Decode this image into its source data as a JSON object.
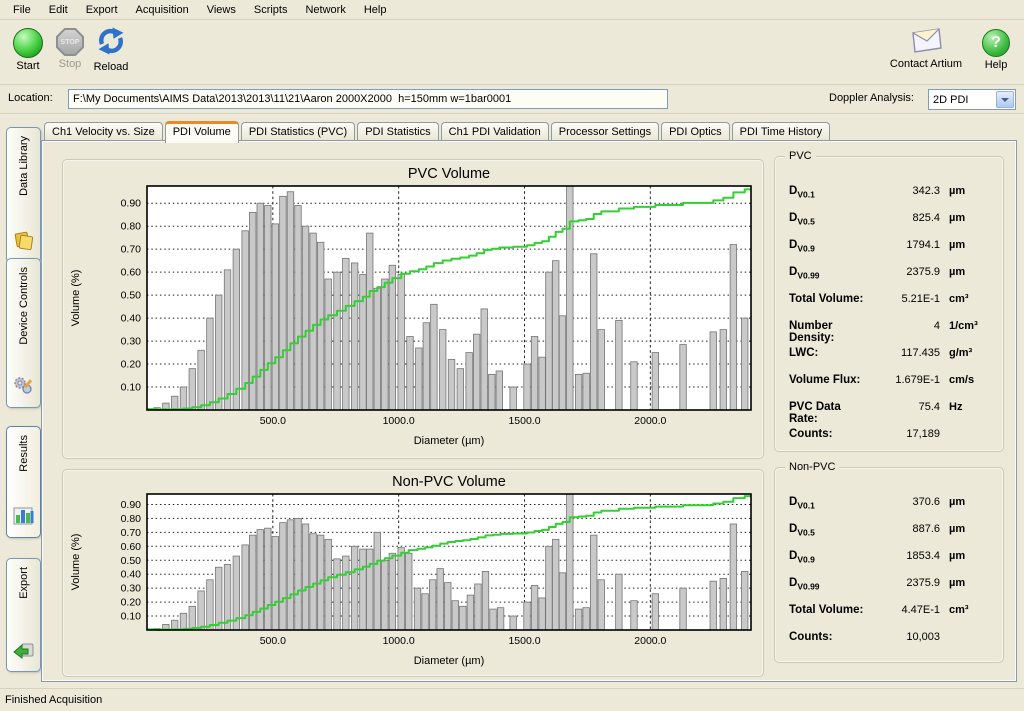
{
  "menu": {
    "items": [
      "File",
      "Edit",
      "Export",
      "Acquisition",
      "Views",
      "Scripts",
      "Network",
      "Help"
    ]
  },
  "toolbar": {
    "start": "Start",
    "stop": "Stop",
    "reload": "Reload",
    "stop_badge": "STOP",
    "contact": "Contact Artium",
    "help": "Help",
    "help_glyph": "?"
  },
  "location": {
    "label": "Location:",
    "value": "F:\\My Documents\\AIMS Data\\2013\\2013\\11\\21\\Aaron 2000X2000  h=150mm w=1bar0001"
  },
  "doppler": {
    "label": "Doppler Analysis:",
    "value": "2D PDI"
  },
  "tabs": [
    "Ch1 Velocity vs. Size",
    "PDI Volume",
    "PDI Statistics (PVC)",
    "PDI Statistics",
    "Ch1 PDI Validation",
    "Processor Settings",
    "PDI Optics",
    "PDI Time History"
  ],
  "active_tab_index": 1,
  "sidebar": {
    "items": [
      {
        "label": "Data Library",
        "icon": "folders-icon",
        "active": false
      },
      {
        "label": "Device Controls",
        "icon": "gears-icon",
        "active": false
      },
      {
        "label": "Results",
        "icon": "bar-chart-icon",
        "active": true
      },
      {
        "label": "Export",
        "icon": "export-arrow-icon",
        "active": false
      }
    ]
  },
  "stats": {
    "pvc": {
      "legend": "PVC",
      "rows": [
        {
          "d": "D",
          "sub": "V0.1",
          "value": "342.3",
          "unit": "µm"
        },
        {
          "d": "D",
          "sub": "V0.5",
          "value": "825.4",
          "unit": "µm"
        },
        {
          "d": "D",
          "sub": "V0.9",
          "value": "1794.1",
          "unit": "µm"
        },
        {
          "d": "D",
          "sub": "V0.99",
          "value": "2375.9",
          "unit": "µm"
        },
        {
          "label": "Total Volume:",
          "value": "5.21E-1",
          "unit": "cm³"
        },
        {
          "label": "Number Density:",
          "value": "4",
          "unit": "1/cm³"
        },
        {
          "label": "LWC:",
          "value": "117.435",
          "unit": "g/m³"
        },
        {
          "label": "Volume Flux:",
          "value": "1.679E-1",
          "unit": "cm/s"
        },
        {
          "label": "PVC Data Rate:",
          "value": "75.4",
          "unit": "Hz"
        },
        {
          "label": "Counts:",
          "value": "17,189",
          "unit": ""
        }
      ]
    },
    "nonpvc": {
      "legend": "Non-PVC",
      "rows": [
        {
          "d": "D",
          "sub": "V0.1",
          "value": "370.6",
          "unit": "µm"
        },
        {
          "d": "D",
          "sub": "V0.5",
          "value": "887.6",
          "unit": "µm"
        },
        {
          "d": "D",
          "sub": "V0.9",
          "value": "1853.4",
          "unit": "µm"
        },
        {
          "d": "D",
          "sub": "V0.99",
          "value": "2375.9",
          "unit": "µm"
        },
        {
          "label": "Total Volume:",
          "value": "4.47E-1",
          "unit": "cm³"
        },
        {
          "label": "Counts:",
          "value": "10,003",
          "unit": ""
        }
      ]
    }
  },
  "status_bar": "Finished Acquisition",
  "colors": {
    "window_bg": "#ece9d8",
    "active_tab_accent": "#e68b2c",
    "bar_fill": "#c9c9c9",
    "bar_stroke": "#757575",
    "cumulative_line": "#35cf35",
    "plot_bg": "#ffffff",
    "plot_frame": "#000000"
  },
  "chart_data": [
    {
      "type": "bar",
      "title": "PVC Volume",
      "xlabel": "Diameter (µm)",
      "ylabel": "Volume (%)",
      "xlim": [
        0,
        2400
      ],
      "ylim": [
        0,
        0.975
      ],
      "xticks": [
        500,
        1000,
        1500,
        2000
      ],
      "yticks": [
        0.1,
        0.2,
        0.3,
        0.4,
        0.5,
        0.6,
        0.7,
        0.8,
        0.9
      ],
      "grid": true,
      "bars": [
        [
          40,
          0.01
        ],
        [
          75,
          0.03
        ],
        [
          110,
          0.06
        ],
        [
          145,
          0.1
        ],
        [
          180,
          0.18
        ],
        [
          215,
          0.26
        ],
        [
          250,
          0.4
        ],
        [
          285,
          0.5
        ],
        [
          320,
          0.61
        ],
        [
          355,
          0.7
        ],
        [
          390,
          0.78
        ],
        [
          420,
          0.86
        ],
        [
          450,
          0.9
        ],
        [
          480,
          0.89
        ],
        [
          510,
          0.81
        ],
        [
          540,
          0.93
        ],
        [
          570,
          0.95
        ],
        [
          600,
          0.89
        ],
        [
          630,
          0.8
        ],
        [
          660,
          0.77
        ],
        [
          690,
          0.73
        ],
        [
          720,
          0.57
        ],
        [
          755,
          0.6
        ],
        [
          790,
          0.66
        ],
        [
          825,
          0.64
        ],
        [
          858,
          0.59
        ],
        [
          885,
          0.77
        ],
        [
          915,
          0.53
        ],
        [
          945,
          0.57
        ],
        [
          975,
          0.63
        ],
        [
          1010,
          0.59
        ],
        [
          1045,
          0.32
        ],
        [
          1080,
          0.27
        ],
        [
          1110,
          0.38
        ],
        [
          1140,
          0.46
        ],
        [
          1175,
          0.35
        ],
        [
          1210,
          0.22
        ],
        [
          1245,
          0.18
        ],
        [
          1280,
          0.25
        ],
        [
          1310,
          0.33
        ],
        [
          1340,
          0.44
        ],
        [
          1370,
          0.155
        ],
        [
          1400,
          0.17
        ],
        [
          1455,
          0.1
        ],
        [
          1510,
          0.2
        ],
        [
          1540,
          0.32
        ],
        [
          1570,
          0.23
        ],
        [
          1597,
          0.6
        ],
        [
          1624,
          0.65
        ],
        [
          1651,
          0.41
        ],
        [
          1680,
          1.0
        ],
        [
          1715,
          0.155
        ],
        [
          1745,
          0.16
        ],
        [
          1775,
          0.68
        ],
        [
          1805,
          0.35
        ],
        [
          1875,
          0.39
        ],
        [
          1935,
          0.21
        ],
        [
          2020,
          0.25
        ],
        [
          2130,
          0.285
        ],
        [
          2250,
          0.34
        ],
        [
          2290,
          0.35
        ],
        [
          2330,
          0.72
        ],
        [
          2375,
          0.4
        ]
      ],
      "cumulative_line": {
        "name": "Cumulative volume (normalized)",
        "derived_from": "bars",
        "final_value": 0.96
      }
    },
    {
      "type": "bar",
      "title": "Non-PVC Volume",
      "xlabel": "Diameter (µm)",
      "ylabel": "Volume (%)",
      "xlim": [
        0,
        2400
      ],
      "ylim": [
        0,
        0.975
      ],
      "xticks": [
        500,
        1000,
        1500,
        2000
      ],
      "yticks": [
        0.1,
        0.2,
        0.3,
        0.4,
        0.5,
        0.6,
        0.7,
        0.8,
        0.9
      ],
      "grid": true,
      "bars": [
        [
          40,
          0.01
        ],
        [
          75,
          0.04
        ],
        [
          110,
          0.07
        ],
        [
          145,
          0.12
        ],
        [
          180,
          0.17
        ],
        [
          215,
          0.28
        ],
        [
          250,
          0.36
        ],
        [
          285,
          0.45
        ],
        [
          320,
          0.47
        ],
        [
          355,
          0.53
        ],
        [
          390,
          0.61
        ],
        [
          420,
          0.68
        ],
        [
          450,
          0.72
        ],
        [
          480,
          0.73
        ],
        [
          510,
          0.67
        ],
        [
          540,
          0.77
        ],
        [
          570,
          0.79
        ],
        [
          600,
          0.8
        ],
        [
          630,
          0.76
        ],
        [
          660,
          0.69
        ],
        [
          690,
          0.68
        ],
        [
          720,
          0.65
        ],
        [
          755,
          0.51
        ],
        [
          790,
          0.53
        ],
        [
          825,
          0.6
        ],
        [
          858,
          0.58
        ],
        [
          885,
          0.58
        ],
        [
          915,
          0.7
        ],
        [
          945,
          0.5
        ],
        [
          975,
          0.55
        ],
        [
          1010,
          0.59
        ],
        [
          1040,
          0.55
        ],
        [
          1075,
          0.3
        ],
        [
          1105,
          0.26
        ],
        [
          1135,
          0.36
        ],
        [
          1165,
          0.44
        ],
        [
          1195,
          0.34
        ],
        [
          1225,
          0.21
        ],
        [
          1255,
          0.17
        ],
        [
          1285,
          0.25
        ],
        [
          1315,
          0.33
        ],
        [
          1345,
          0.42
        ],
        [
          1375,
          0.15
        ],
        [
          1405,
          0.16
        ],
        [
          1455,
          0.1
        ],
        [
          1510,
          0.2
        ],
        [
          1540,
          0.32
        ],
        [
          1570,
          0.23
        ],
        [
          1597,
          0.6
        ],
        [
          1624,
          0.65
        ],
        [
          1651,
          0.41
        ],
        [
          1680,
          1.0
        ],
        [
          1715,
          0.15
        ],
        [
          1745,
          0.16
        ],
        [
          1775,
          0.68
        ],
        [
          1805,
          0.36
        ],
        [
          1875,
          0.4
        ],
        [
          1935,
          0.21
        ],
        [
          2020,
          0.26
        ],
        [
          2130,
          0.3
        ],
        [
          2250,
          0.35
        ],
        [
          2290,
          0.37
        ],
        [
          2330,
          0.76
        ],
        [
          2375,
          0.42
        ]
      ],
      "cumulative_line": {
        "name": "Cumulative volume (normalized)",
        "derived_from": "bars",
        "final_value": 0.96
      }
    }
  ]
}
